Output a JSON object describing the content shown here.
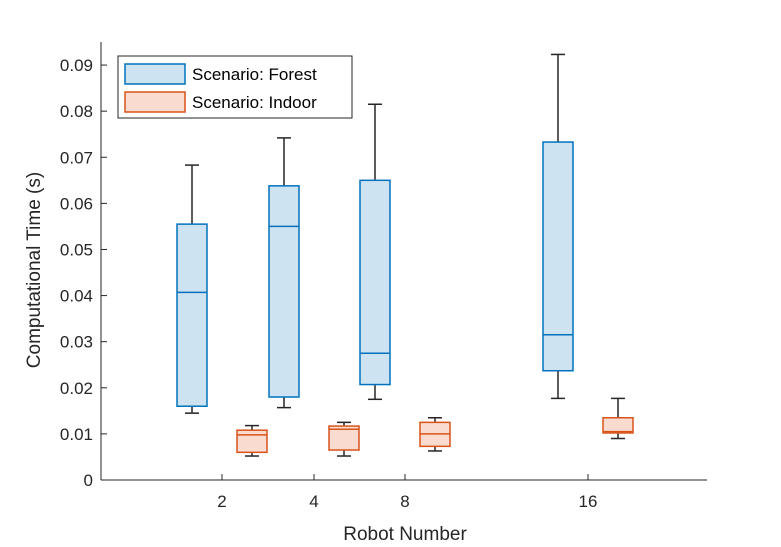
{
  "chart_data": {
    "type": "boxplot",
    "xlabel": "Robot Number",
    "ylabel": "Computational Time (s)",
    "ylim": [
      0,
      0.095
    ],
    "yticks": [
      0,
      0.01,
      0.02,
      0.03,
      0.04,
      0.05,
      0.06,
      0.07,
      0.08,
      0.09
    ],
    "ytick_labels": [
      "0",
      "0.01",
      "0.02",
      "0.03",
      "0.04",
      "0.05",
      "0.06",
      "0.07",
      "0.08",
      "0.09"
    ],
    "categories": [
      "2",
      "4",
      "8",
      "16"
    ],
    "grid": false,
    "legend_position": "top-left",
    "series": [
      {
        "name": "Scenario: Forest",
        "edge_color": "#0072BD",
        "fill_color": "#CDE3F2",
        "boxes": [
          {
            "min": 0.0145,
            "q1": 0.016,
            "median": 0.0407,
            "q3": 0.0555,
            "max": 0.0683
          },
          {
            "min": 0.0157,
            "q1": 0.018,
            "median": 0.055,
            "q3": 0.0638,
            "max": 0.0742
          },
          {
            "min": 0.0175,
            "q1": 0.0207,
            "median": 0.0275,
            "q3": 0.065,
            "max": 0.0815
          },
          {
            "min": 0.0177,
            "q1": 0.0237,
            "median": 0.0315,
            "q3": 0.0733,
            "max": 0.0923
          }
        ]
      },
      {
        "name": "Scenario: Indoor",
        "edge_color": "#D95319",
        "fill_color": "#F9DCCF",
        "boxes": [
          {
            "min": 0.0052,
            "q1": 0.006,
            "median": 0.0098,
            "q3": 0.0108,
            "max": 0.0118
          },
          {
            "min": 0.0052,
            "q1": 0.0065,
            "median": 0.011,
            "q3": 0.0117,
            "max": 0.0125
          },
          {
            "min": 0.0063,
            "q1": 0.0073,
            "median": 0.01,
            "q3": 0.0125,
            "max": 0.0135
          },
          {
            "min": 0.009,
            "q1": 0.0102,
            "median": 0.0105,
            "q3": 0.0135,
            "max": 0.0177
          }
        ]
      }
    ]
  }
}
